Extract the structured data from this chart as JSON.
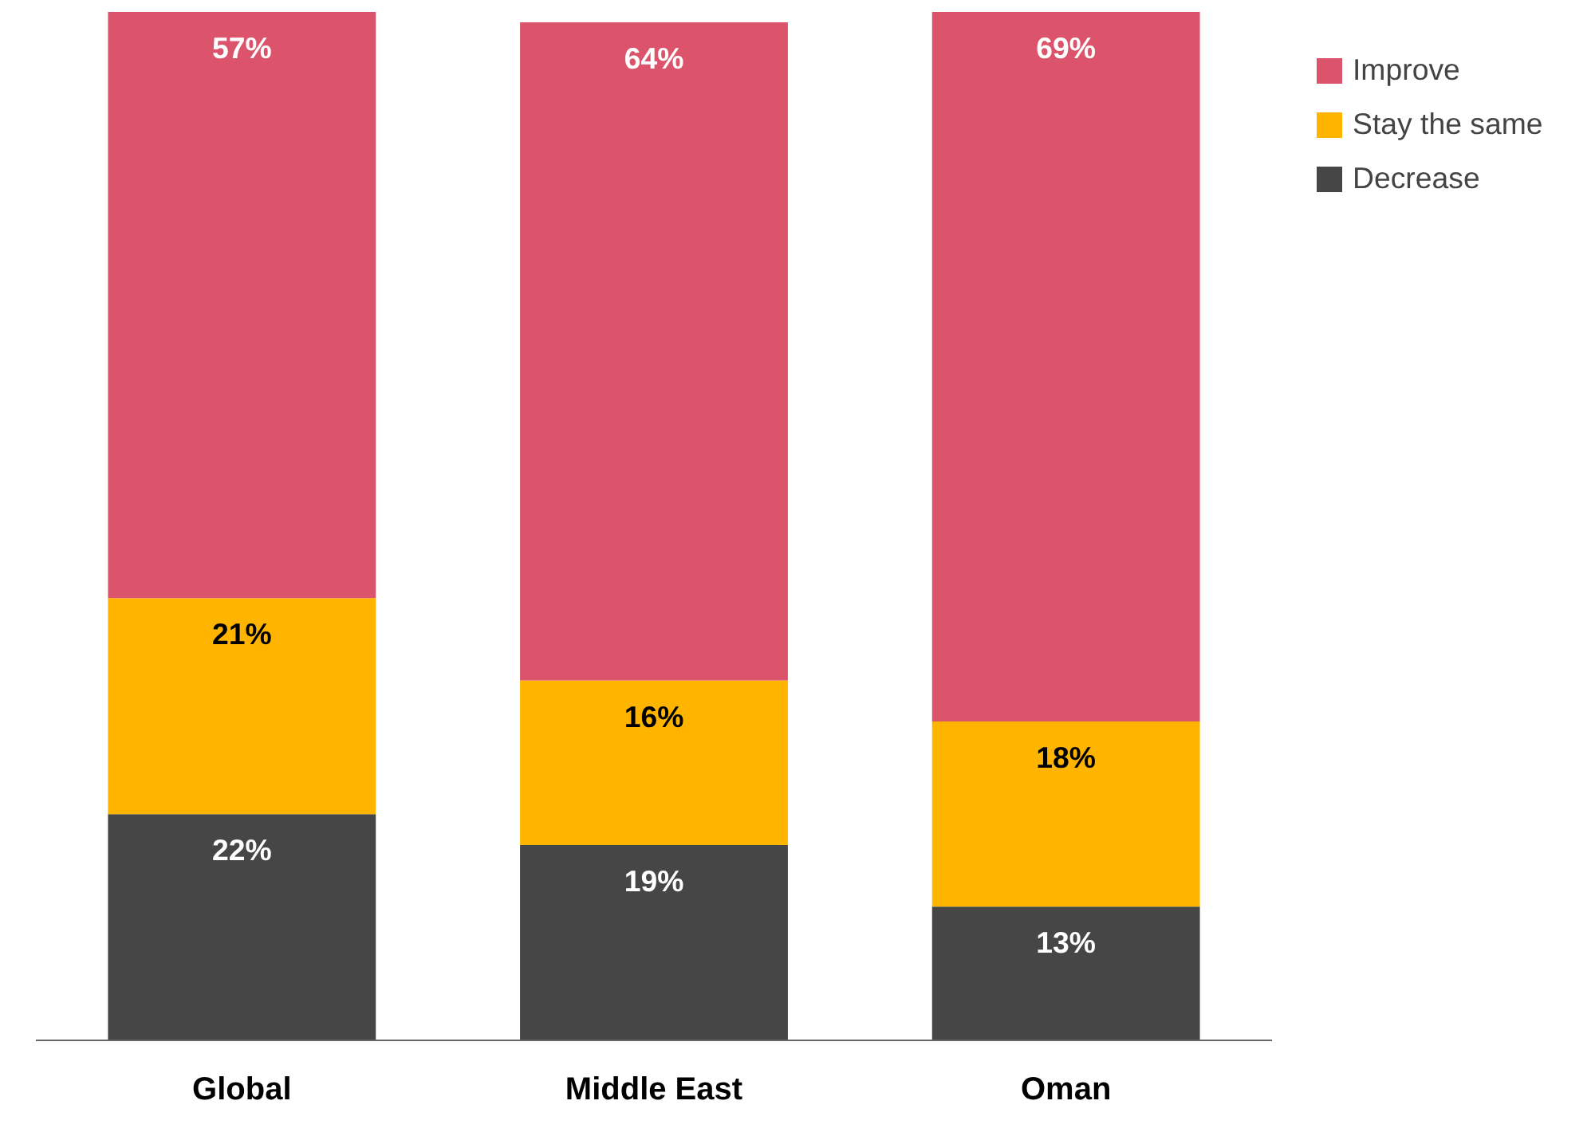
{
  "chart_data": {
    "type": "bar",
    "stacked": true,
    "categories": [
      "Global",
      "Middle East",
      "Oman"
    ],
    "legend": "top right",
    "grid": false,
    "series": [
      {
        "name": "Decrease",
        "color": "#464646",
        "values": [
          22,
          19,
          13
        ],
        "value_labels": [
          "22%",
          "19%",
          "13%"
        ]
      },
      {
        "name": "Stay the same",
        "color": "#ffb400",
        "values": [
          21,
          16,
          18
        ],
        "value_labels": [
          "21%",
          "16%",
          "18%"
        ]
      },
      {
        "name": "Improve",
        "color": "#dc546b",
        "values": [
          57,
          64,
          69
        ],
        "value_labels": [
          "57%",
          "64%",
          "69%"
        ]
      }
    ]
  }
}
